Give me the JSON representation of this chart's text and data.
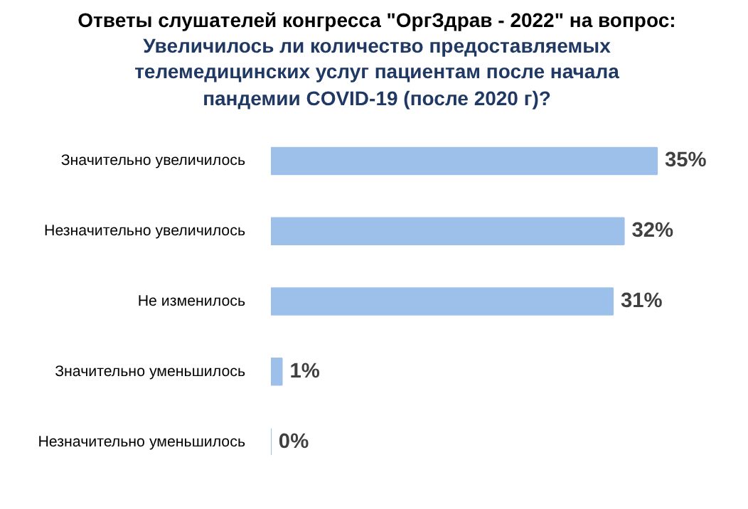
{
  "chart_data": {
    "type": "bar",
    "orientation": "horizontal",
    "title": "Ответы слушателей конгресса \"ОргЗдрав - 2022\" на вопрос:",
    "subtitle": "Увеличилось ли количество предоставляемых телемедицинских услуг пациентам после начала пандемии COVID-19 (после 2020 г)?",
    "categories": [
      "Значительно увеличилось",
      "Незначительно увеличилось",
      "Не изменилось",
      "Значительно уменьшилось",
      "Незначительно уменьшилось"
    ],
    "values": [
      35,
      32,
      31,
      1,
      0
    ],
    "color": "#9dc0ea",
    "data_labels": true,
    "value_labels": [
      "35%",
      "32%",
      "31%",
      "1%",
      "0%"
    ],
    "grid": false
  }
}
